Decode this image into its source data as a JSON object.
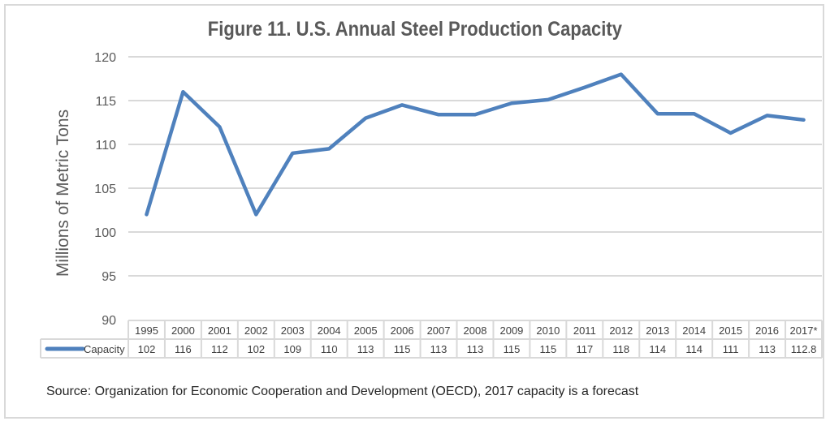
{
  "chart_data": {
    "type": "line",
    "title": "Figure 11. U.S. Annual Steel Production Capacity",
    "xlabel": "",
    "ylabel": "Millions of Metric Tons",
    "ylim": [
      90,
      120
    ],
    "yticks": [
      90,
      95,
      100,
      105,
      110,
      115,
      120
    ],
    "grid": true,
    "categories": [
      "1995",
      "2000",
      "2001",
      "2002",
      "2003",
      "2004",
      "2005",
      "2006",
      "2007",
      "2008",
      "2009",
      "2010",
      "2011",
      "2012",
      "2013",
      "2014",
      "2015",
      "2016",
      "2017*"
    ],
    "series": [
      {
        "name": "Capacity",
        "color": "#4f81bd",
        "values": [
          102,
          116,
          112,
          102,
          109,
          109.5,
          113,
          114.5,
          113.4,
          113.4,
          114.7,
          115.1,
          116.5,
          118,
          113.5,
          113.5,
          111.3,
          113.3,
          112.8
        ],
        "table_labels": [
          "102",
          "116",
          "112",
          "102",
          "109",
          "110",
          "113",
          "115",
          "113",
          "113",
          "115",
          "115",
          "117",
          "118",
          "114",
          "114",
          "111",
          "113",
          "112.8"
        ]
      }
    ],
    "legend": "data-table-left",
    "source": "Source: Organization for Economic Cooperation and Development (OECD), 2017 capacity is a forecast"
  }
}
